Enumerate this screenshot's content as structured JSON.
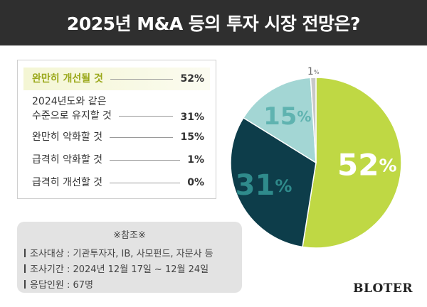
{
  "title": "2025년 M&A 등의 투자 시장 전망은?",
  "legend": [
    {
      "label": "완만히 개선될 것",
      "value": "52%"
    },
    {
      "label": "2024년도와 같은\n수준으로 유지할 것",
      "value": "31%"
    },
    {
      "label": "완만히 악화할 것",
      "value": "15%"
    },
    {
      "label": "급격히 악화할 것",
      "value": "1%"
    },
    {
      "label": "급격히 개선할 것",
      "value": "0%"
    }
  ],
  "reference": {
    "title": "※참조※",
    "lines": [
      "조사대상 : 기관투자자, IB, 사모펀드, 자문사 등",
      "조사기간 : 2024년 12월 17일 ~ 12월 24일",
      "응답인원 : 67명"
    ]
  },
  "brand": "BLOTER",
  "chart_data": {
    "type": "pie",
    "slices": [
      {
        "label": "완만히 개선될 것",
        "value": 52,
        "display": "52",
        "color": "#bfd844",
        "text_color": "#ffffff"
      },
      {
        "label": "2024년도와 같은 수준으로 유지할 것",
        "value": 31,
        "display": "31",
        "color": "#0d3d4a",
        "text_color": "#2f8b8c"
      },
      {
        "label": "완만히 악화할 것",
        "value": 15,
        "display": "15",
        "color": "#a3d6d4",
        "text_color": "#5fb3b0"
      },
      {
        "label": "급격히 악화할 것",
        "value": 1,
        "display": "1",
        "color": "#c8c8c8",
        "text_color": "#6e6e6e"
      }
    ],
    "unit": "%"
  }
}
